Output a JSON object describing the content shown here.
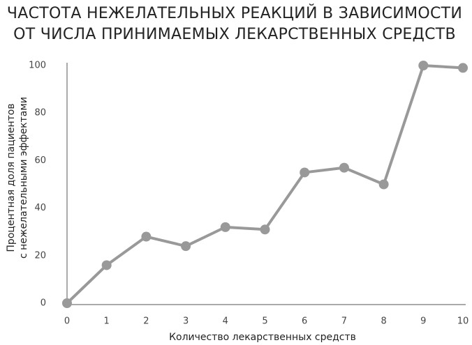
{
  "chart_data": {
    "type": "line",
    "title": [
      "ЧАСТОТА НЕЖЕЛАТЕЛЬНЫХ РЕАКЦИЙ В ЗАВИСИМОСТИ",
      "ОТ ЧИСЛА ПРИНИМАЕМЫХ ЛЕКАРСТВЕННЫХ СРЕДСТВ"
    ],
    "x_label": "Количество лекарственных средств",
    "y_label": [
      "Процентная доля пациентов",
      "с нежелательными эффектами"
    ],
    "x": [
      0,
      1,
      2,
      3,
      4,
      5,
      6,
      7,
      8,
      9,
      10
    ],
    "values": [
      0,
      16,
      28,
      24,
      32,
      31,
      55,
      57,
      50,
      100,
      99
    ],
    "color": "#999999",
    "xlim": [
      0,
      10
    ],
    "xticks": [
      0,
      1,
      2,
      3,
      4,
      5,
      6,
      7,
      8,
      9,
      10
    ],
    "ylim": [
      0,
      100
    ],
    "yticks": [
      0,
      20,
      40,
      60,
      80,
      100
    ],
    "grid": false
  }
}
